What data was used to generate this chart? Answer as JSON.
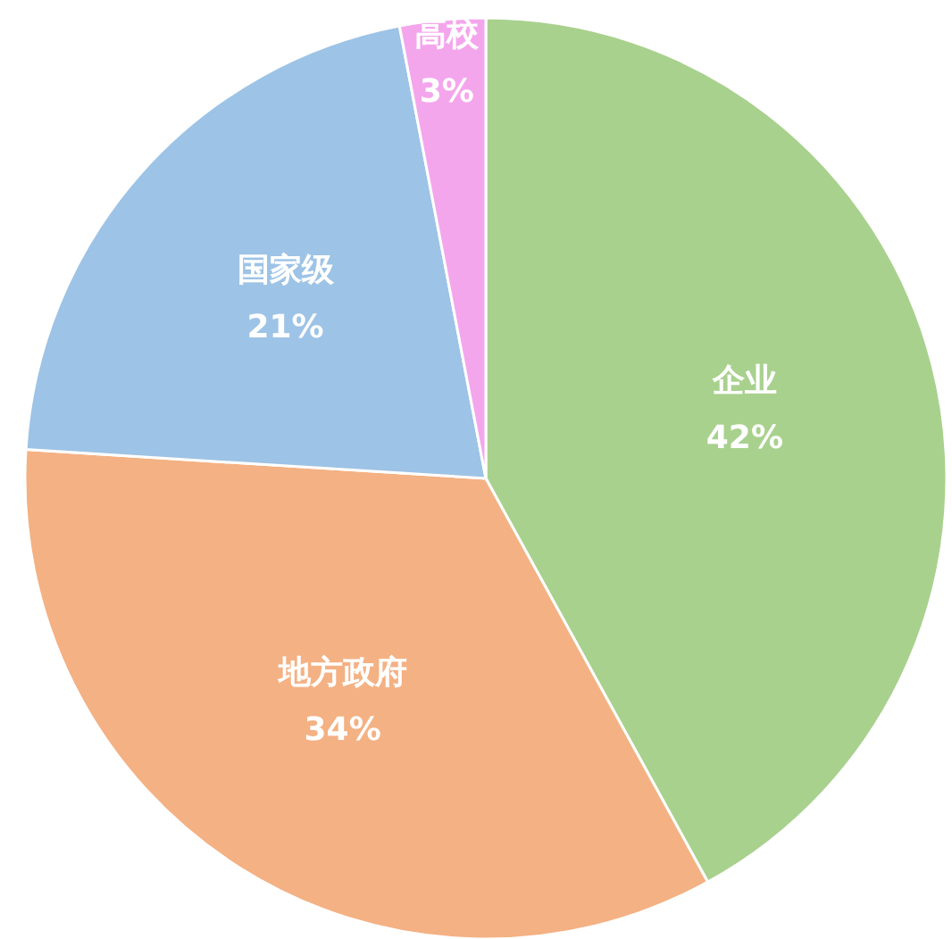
{
  "chart_data": {
    "type": "pie",
    "categories": [
      "企业",
      "地方政府",
      "国家级",
      "高校"
    ],
    "values": [
      42,
      34,
      21,
      3
    ],
    "value_labels": [
      "42%",
      "34%",
      "21%",
      "3%"
    ],
    "colors": [
      "#a9d18e",
      "#f4b183",
      "#9dc3e6",
      "#f4a6ec"
    ]
  }
}
